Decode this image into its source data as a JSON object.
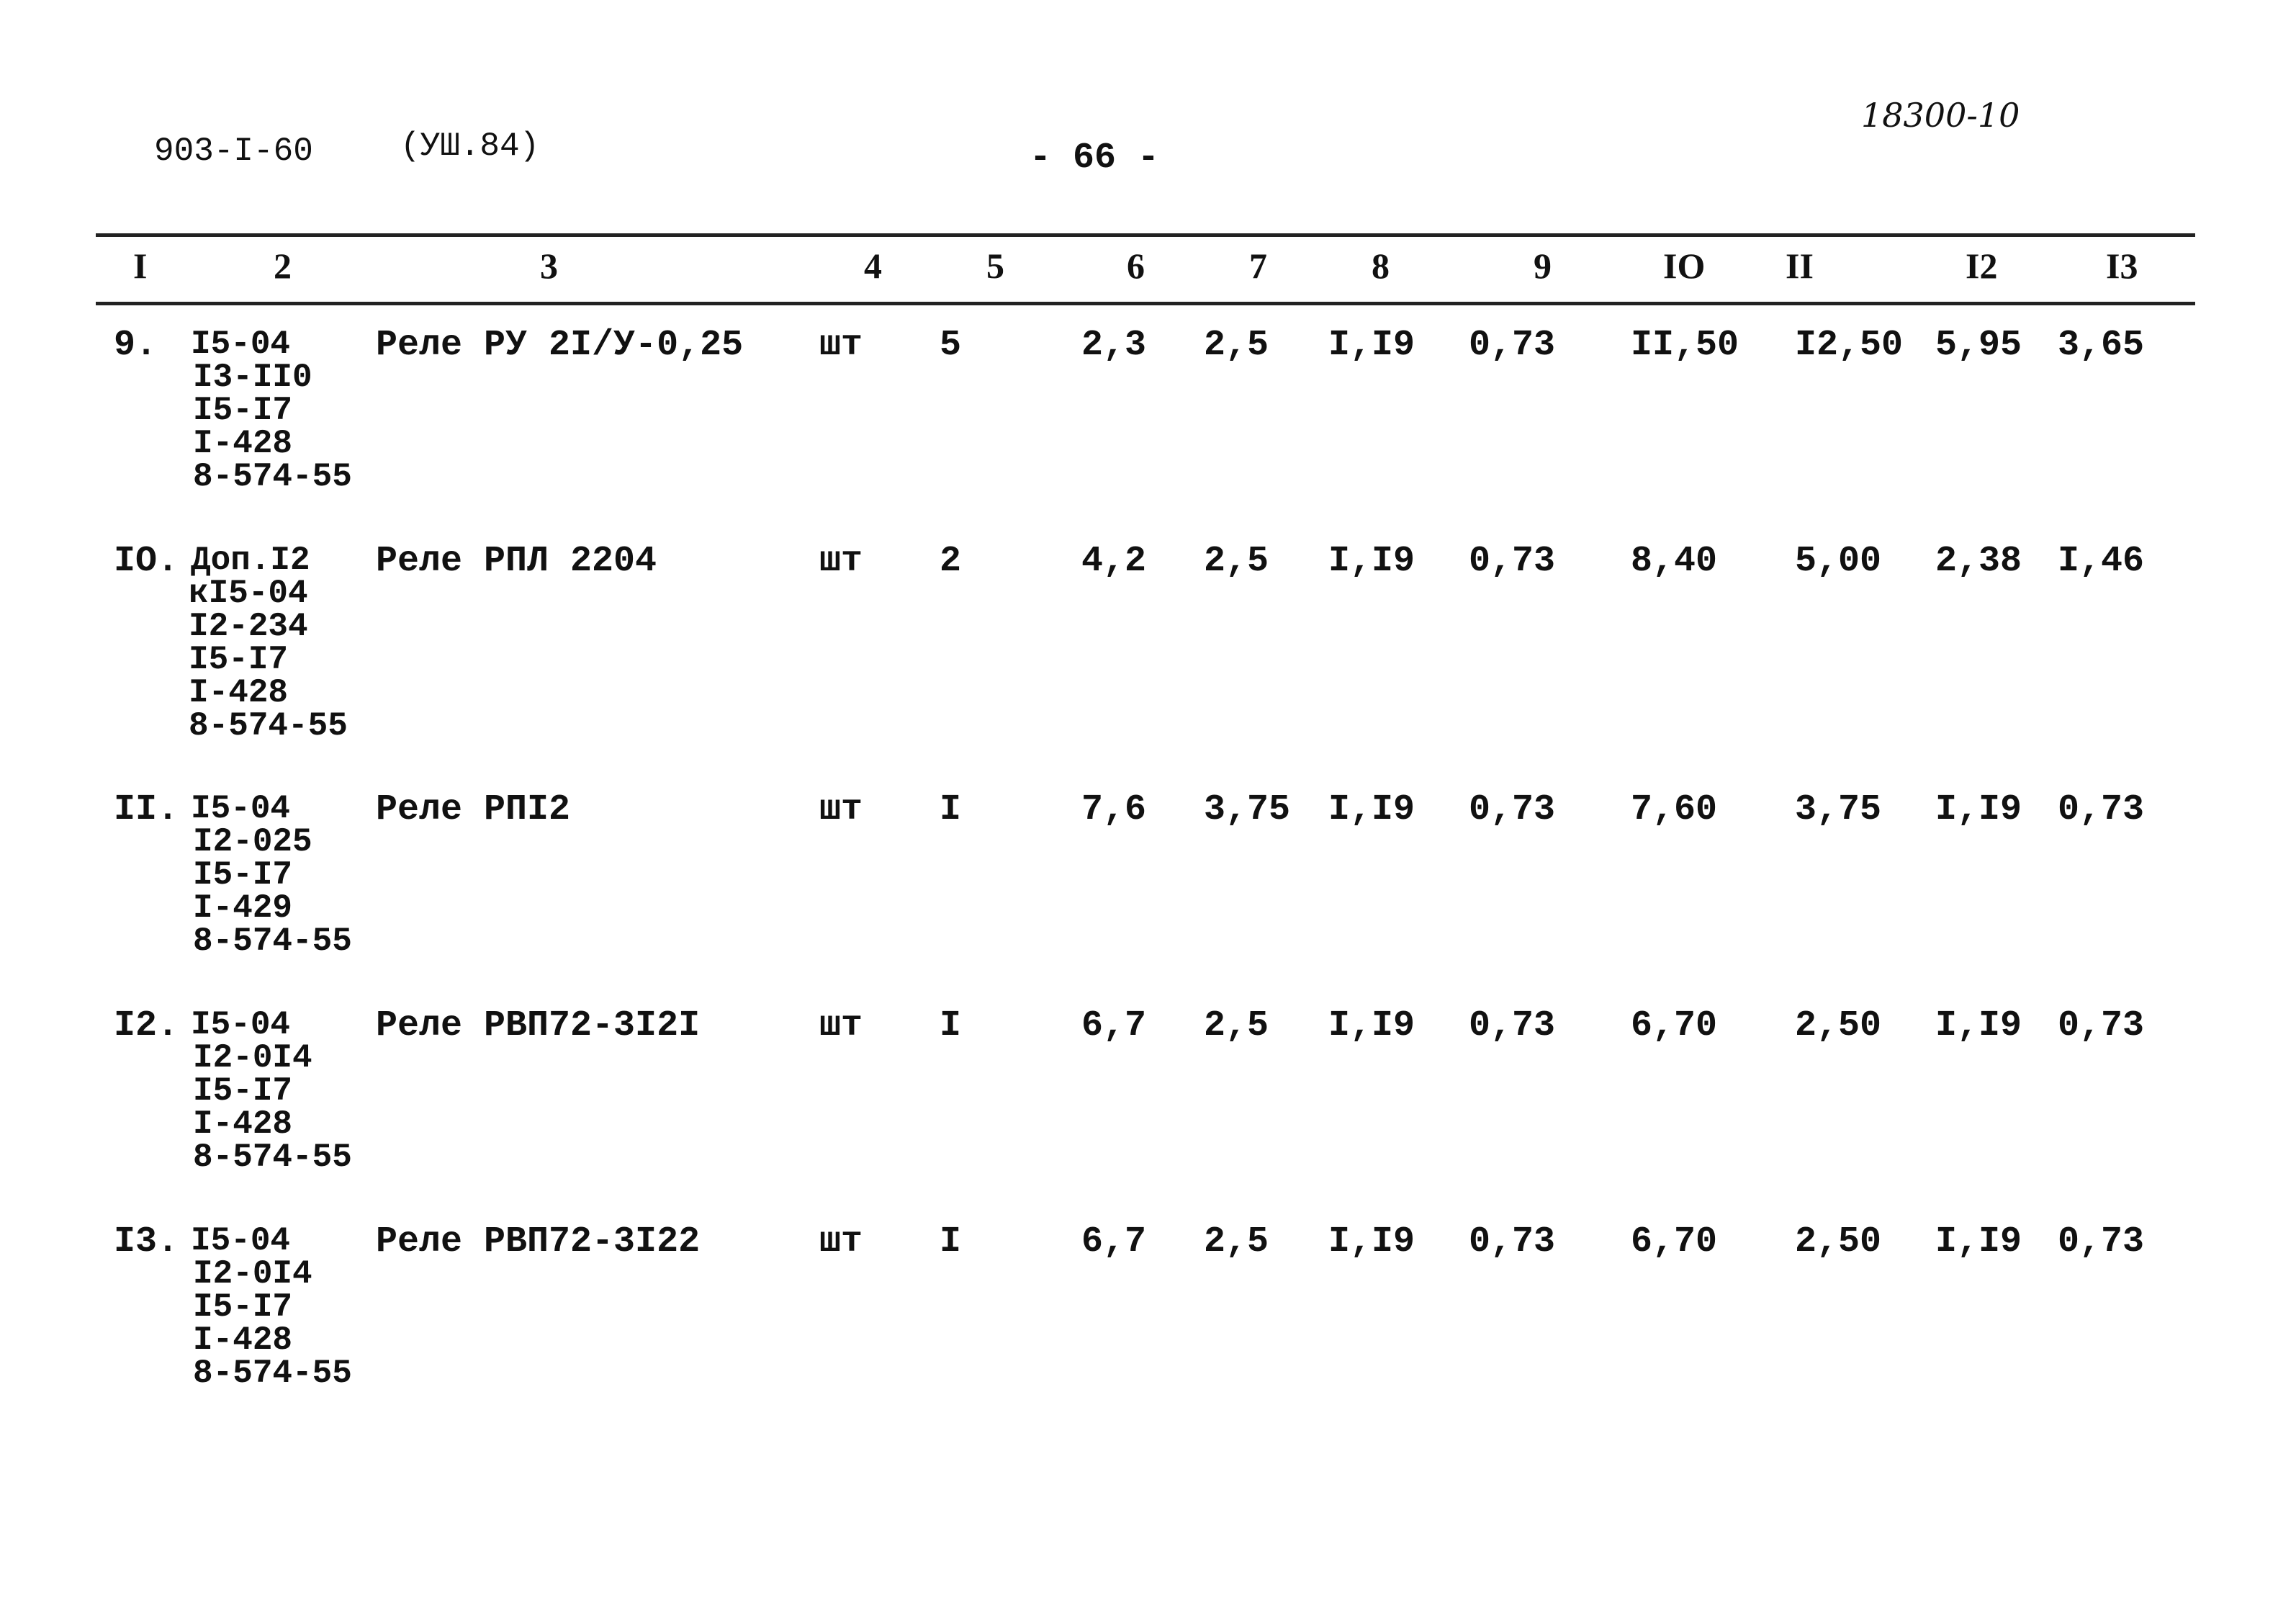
{
  "header": {
    "doc_code": "903-I-60",
    "edition": "(УШ.84)",
    "page": "- 66 -",
    "handwritten_number": "18300-10"
  },
  "columns": [
    "I",
    "2",
    "3",
    "4",
    "5",
    "6",
    "7",
    "8",
    "9",
    "IO",
    "II",
    "I2",
    "I3"
  ],
  "rows": [
    {
      "num": "9.",
      "codes": [
        "I5-04",
        "I3-II0",
        "I5-I7",
        "I-428",
        "8-574-55"
      ],
      "name": "Реле РУ 2I/У-0,25",
      "unit": "шт",
      "c5": "5",
      "c6": "2,3",
      "c7": "2,5",
      "c8": "I,I9",
      "c9": "0,73",
      "c10": "II,50",
      "c11": "I2,50",
      "c12": "5,95",
      "c13": "3,65"
    },
    {
      "num": "IO.",
      "codes": [
        "Доп.I2",
        "кI5-04",
        "I2-234",
        "I5-I7",
        "I-428",
        "8-574-55"
      ],
      "name": "Реле РПЛ 2204",
      "unit": "шт",
      "c5": "2",
      "c6": "4,2",
      "c7": "2,5",
      "c8": "I,I9",
      "c9": "0,73",
      "c10": "8,40",
      "c11": "5,00",
      "c12": "2,38",
      "c13": "I,46"
    },
    {
      "num": "II.",
      "codes": [
        "I5-04",
        "I2-025",
        "I5-I7",
        "I-429",
        "8-574-55"
      ],
      "name": "Реле РПI2",
      "unit": "шт",
      "c5": "I",
      "c6": "7,6",
      "c7": "3,75",
      "c8": "I,I9",
      "c9": "0,73",
      "c10": "7,60",
      "c11": "3,75",
      "c12": "I,I9",
      "c13": "0,73"
    },
    {
      "num": "I2.",
      "codes": [
        "I5-04",
        "I2-0I4",
        "I5-I7",
        "I-428",
        "8-574-55"
      ],
      "name": "Реле РВП72-3I2I",
      "unit": "шт",
      "c5": "I",
      "c6": "6,7",
      "c7": "2,5",
      "c8": "I,I9",
      "c9": "0,73",
      "c10": "6,70",
      "c11": "2,50",
      "c12": "I,I9",
      "c13": "0,73"
    },
    {
      "num": "I3.",
      "codes": [
        "I5-04",
        "I2-0I4",
        "I5-I7",
        "I-428",
        "8-574-55"
      ],
      "name": "Реле РВП72-3I22",
      "unit": "шт",
      "c5": "I",
      "c6": "6,7",
      "c7": "2,5",
      "c8": "I,I9",
      "c9": "0,73",
      "c10": "6,70",
      "c11": "2,50",
      "c12": "I,I9",
      "c13": "0,73"
    }
  ]
}
